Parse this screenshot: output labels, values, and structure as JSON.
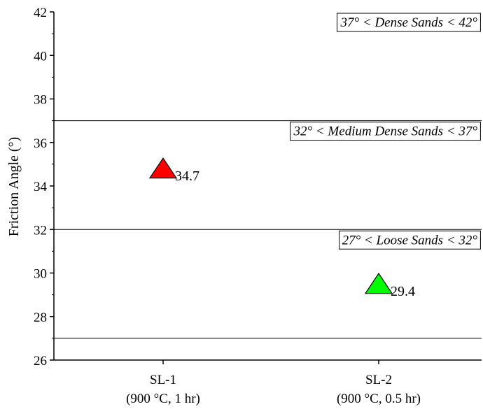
{
  "chart_data": {
    "type": "scatter",
    "ylabel": "Friction Angle (°)",
    "xlabel": "",
    "ylim": [
      26,
      42
    ],
    "yticks": [
      "26",
      "28",
      "30",
      "32",
      "34",
      "36",
      "38",
      "40",
      "42"
    ],
    "categories": [
      {
        "name": "SL-1",
        "sub": "(900 °C, 1 hr)"
      },
      {
        "name": "SL-2",
        "sub": "(900 °C, 0.5 hr)"
      }
    ],
    "points": [
      {
        "category": "SL-1",
        "value": 34.7,
        "label": "34.7",
        "color": "#ff0000",
        "marker": "triangle"
      },
      {
        "category": "SL-2",
        "value": 29.4,
        "label": "29.4",
        "color": "#00ff00",
        "marker": "triangle"
      }
    ],
    "zones": [
      {
        "low": 37,
        "high": 42,
        "label": "37° < Dense Sands < 42°"
      },
      {
        "low": 32,
        "high": 37,
        "label": "32° < Medium Dense Sands < 37°"
      },
      {
        "low": 27,
        "high": 32,
        "label": "27° < Loose Sands < 32°"
      }
    ],
    "hlines": [
      37,
      32,
      27
    ],
    "grid": false,
    "legend": "none"
  }
}
